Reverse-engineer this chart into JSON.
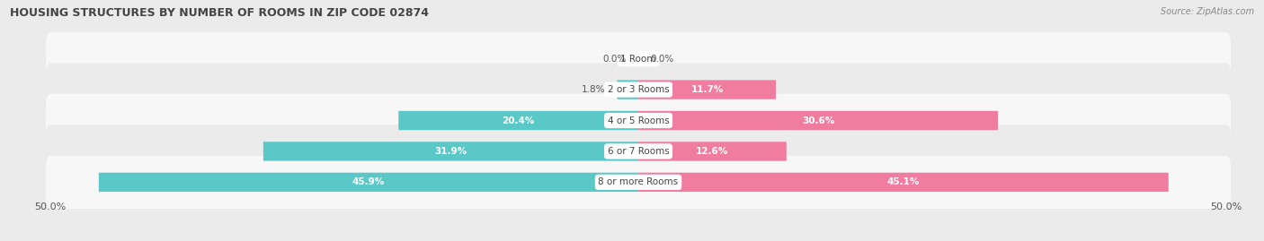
{
  "title": "HOUSING STRUCTURES BY NUMBER OF ROOMS IN ZIP CODE 02874",
  "source": "Source: ZipAtlas.com",
  "categories": [
    "1 Room",
    "2 or 3 Rooms",
    "4 or 5 Rooms",
    "6 or 7 Rooms",
    "8 or more Rooms"
  ],
  "owner_values": [
    0.0,
    1.8,
    20.4,
    31.9,
    45.9
  ],
  "renter_values": [
    0.0,
    11.7,
    30.6,
    12.6,
    45.1
  ],
  "owner_color": "#5bc8c8",
  "renter_color": "#f07ca0",
  "bg_color": "#ebebeb",
  "row_colors": [
    "#f7f7f7",
    "#ebebeb"
  ],
  "label_color": "#555555",
  "title_color": "#444444",
  "axis_max": 50.0,
  "bar_height": 0.62,
  "figsize": [
    14.06,
    2.69
  ],
  "dpi": 100
}
